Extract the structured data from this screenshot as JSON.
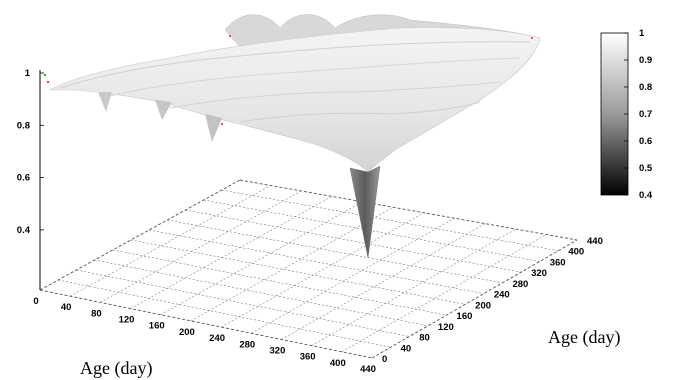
{
  "chart_data": {
    "type": "surface",
    "x_axis_label": "Age  (day)",
    "y_axis_label": "Age  (day)",
    "x_ticks": [
      "0",
      "40",
      "80",
      "120",
      "160",
      "200",
      "240",
      "280",
      "320",
      "360",
      "400",
      "440"
    ],
    "y_ticks": [
      "0",
      "40",
      "80",
      "120",
      "160",
      "200",
      "240",
      "280",
      "320",
      "360",
      "400",
      "440"
    ],
    "z_ticks": [
      "0.4",
      "0.6",
      "0.8",
      "1"
    ],
    "colorbar_ticks": [
      "1",
      "0.9",
      "0.8",
      "0.7",
      "0.6",
      "0.5",
      "0.4"
    ],
    "x_range": [
      0,
      440
    ],
    "y_range": [
      0,
      440
    ],
    "z_range": [
      0.4,
      1
    ],
    "colorbar_range": [
      0.4,
      1
    ],
    "colormap": "grayscale (black = 0.4, white = 1)",
    "grid": true,
    "legend_position": "right",
    "surface_notes": "correlation surface near 1 across most of the domain, minimum ~0.4 spike at center"
  }
}
